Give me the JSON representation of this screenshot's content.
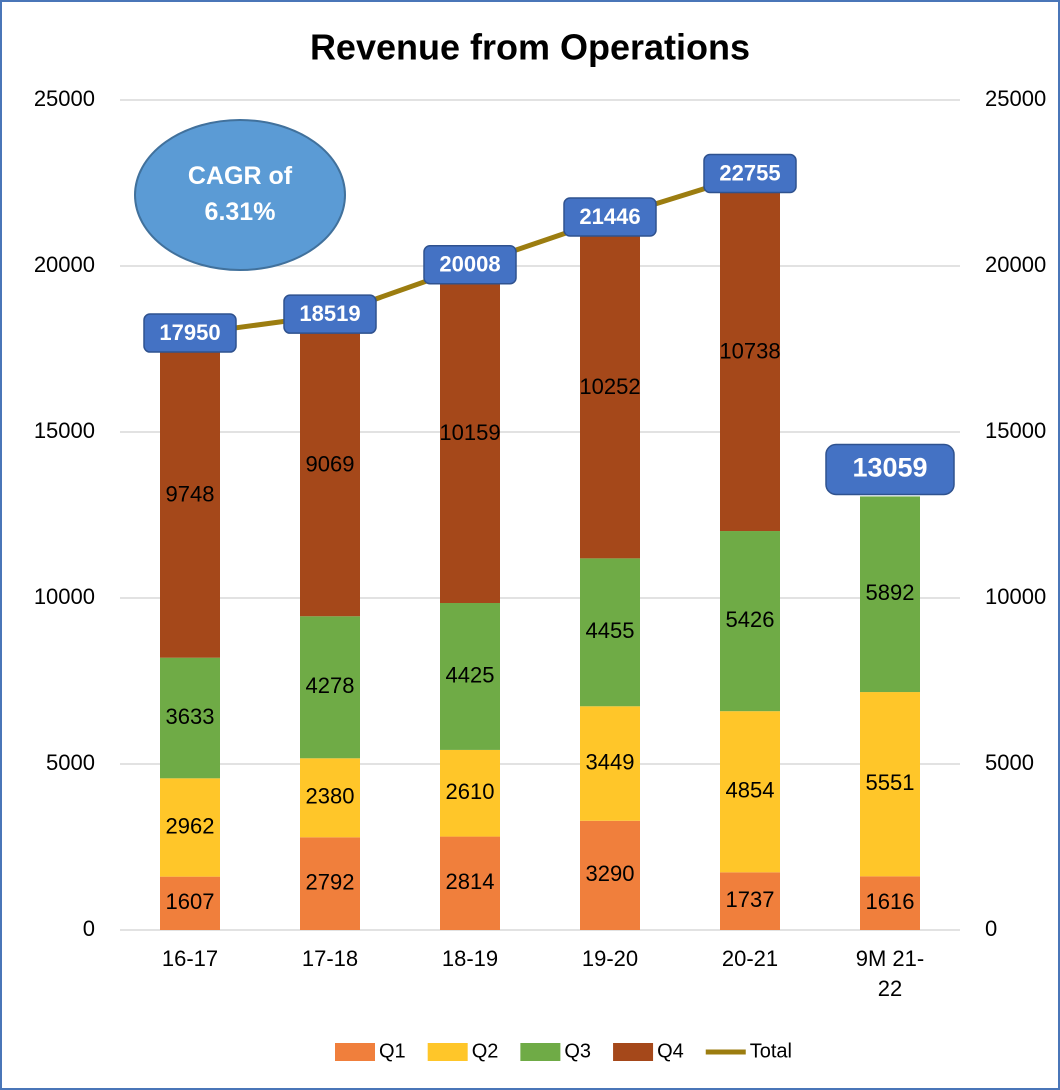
{
  "chart_data": {
    "type": "stacked_bar_line",
    "title": "Revenue from Operations",
    "categories": [
      "16-17",
      "17-18",
      "18-19",
      "19-20",
      "20-21",
      "9M 21-22"
    ],
    "series": [
      {
        "name": "Q1",
        "color": "#f07f3c",
        "values": [
          1607,
          2792,
          2814,
          3290,
          1737,
          1616
        ]
      },
      {
        "name": "Q2",
        "color": "#ffc629",
        "values": [
          2962,
          2380,
          2610,
          3449,
          4854,
          5551
        ]
      },
      {
        "name": "Q3",
        "color": "#6fab46",
        "values": [
          3633,
          4278,
          4425,
          4455,
          5426,
          5892
        ]
      },
      {
        "name": "Q4",
        "color": "#a5481a",
        "values": [
          9748,
          9069,
          10159,
          10252,
          10738,
          null
        ]
      },
      {
        "name": "Total",
        "type": "line",
        "color": "#9c7d10",
        "values": [
          17950,
          18519,
          20008,
          21446,
          22755,
          null
        ]
      }
    ],
    "annotations": [
      {
        "text": "CAGR of 6.31%"
      },
      {
        "text": "13059",
        "x": "9M 21-22"
      }
    ],
    "ylim": [
      0,
      25000
    ],
    "yticks": [
      0,
      5000,
      10000,
      15000,
      20000,
      25000
    ],
    "y2lim": [
      0,
      25000
    ],
    "y2ticks": [
      0,
      5000,
      10000,
      15000,
      20000,
      25000
    ],
    "grid": true,
    "legend": "bottom"
  }
}
